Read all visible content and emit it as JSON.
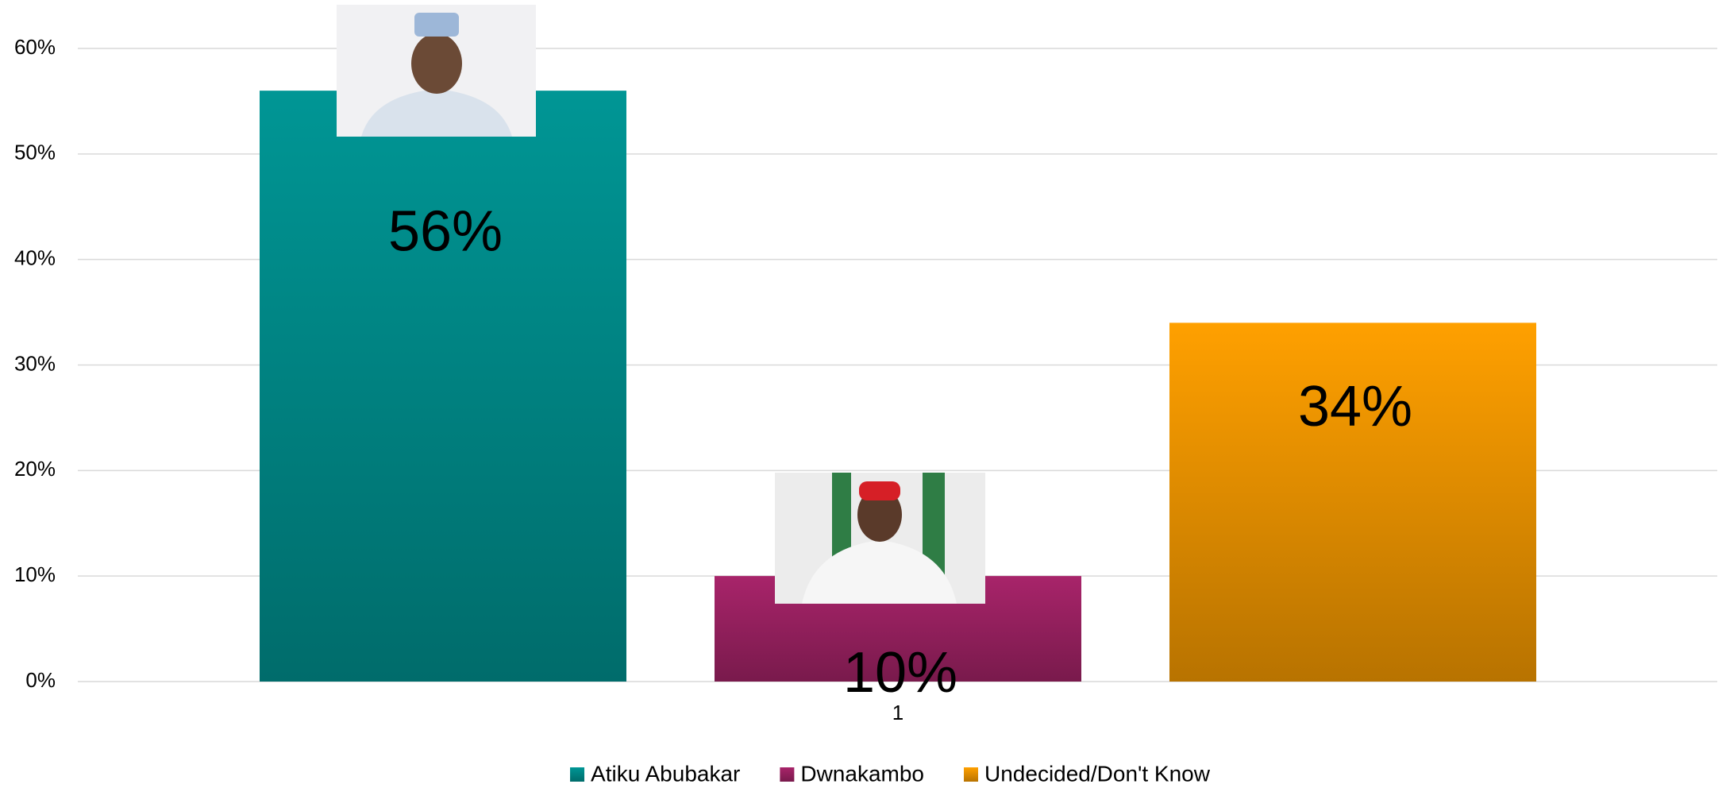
{
  "chart_data": {
    "type": "bar",
    "categories": [
      "1"
    ],
    "series": [
      {
        "name": "Atiku Abubakar",
        "color": "#009695",
        "values": [
          56
        ],
        "value_labels": [
          "56%"
        ]
      },
      {
        "name": "Dwnakambo",
        "color": "#a8246a",
        "values": [
          10
        ],
        "value_labels": [
          "10%"
        ]
      },
      {
        "name": "Undecided/Don't Know",
        "color": "#ffa000",
        "values": [
          34
        ],
        "value_labels": [
          "34%"
        ]
      }
    ],
    "ylim": [
      0,
      60
    ],
    "yticks": [
      {
        "value": 0,
        "label": "0%"
      },
      {
        "value": 10,
        "label": "10%"
      },
      {
        "value": 20,
        "label": "20%"
      },
      {
        "value": 30,
        "label": "30%"
      },
      {
        "value": 40,
        "label": "40%"
      },
      {
        "value": 50,
        "label": "50%"
      },
      {
        "value": 60,
        "label": "60%"
      }
    ],
    "grid": true,
    "legend": "bottom"
  }
}
